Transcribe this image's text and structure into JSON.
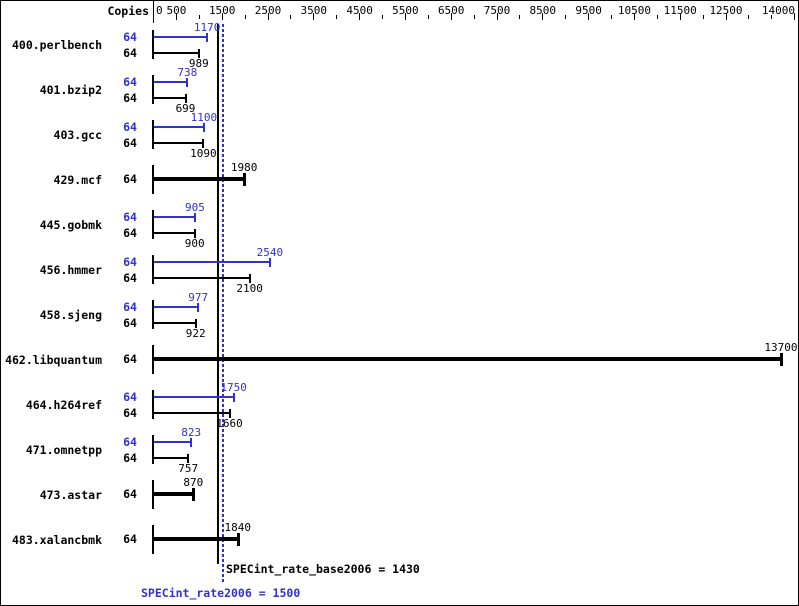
{
  "chart_data": {
    "type": "bar",
    "orientation": "horizontal",
    "title": "",
    "xlabel": "",
    "ylabel": "",
    "copies_column_label": "Copies",
    "grid": false,
    "legend_position": "none",
    "x_axis": {
      "min": 0,
      "max": 14000,
      "tick_step": 500,
      "labeled_ticks": [
        0,
        500,
        1500,
        2500,
        3500,
        4500,
        5500,
        6500,
        7500,
        8500,
        9500,
        10500,
        11500,
        12500,
        14000
      ]
    },
    "series_colors": {
      "peak": "#3232c8",
      "base": "#000000",
      "basepeak": "#000000"
    },
    "benchmarks": [
      {
        "name": "400.perlbench",
        "bars": [
          {
            "kind": "peak",
            "copies": "64",
            "value": 1170
          },
          {
            "kind": "base",
            "copies": "64",
            "value": 989
          }
        ]
      },
      {
        "name": "401.bzip2",
        "bars": [
          {
            "kind": "peak",
            "copies": "64",
            "value": 738
          },
          {
            "kind": "base",
            "copies": "64",
            "value": 699
          }
        ]
      },
      {
        "name": "403.gcc",
        "bars": [
          {
            "kind": "peak",
            "copies": "64",
            "value": 1100
          },
          {
            "kind": "base",
            "copies": "64",
            "value": 1090
          }
        ]
      },
      {
        "name": "429.mcf",
        "bars": [
          {
            "kind": "basepeak",
            "copies": "64",
            "value": 1980
          }
        ]
      },
      {
        "name": "445.gobmk",
        "bars": [
          {
            "kind": "peak",
            "copies": "64",
            "value": 905
          },
          {
            "kind": "base",
            "copies": "64",
            "value": 900
          }
        ]
      },
      {
        "name": "456.hmmer",
        "bars": [
          {
            "kind": "peak",
            "copies": "64",
            "value": 2540
          },
          {
            "kind": "base",
            "copies": "64",
            "value": 2100
          }
        ]
      },
      {
        "name": "458.sjeng",
        "bars": [
          {
            "kind": "peak",
            "copies": "64",
            "value": 977
          },
          {
            "kind": "base",
            "copies": "64",
            "value": 922
          }
        ]
      },
      {
        "name": "462.libquantum",
        "bars": [
          {
            "kind": "basepeak",
            "copies": "64",
            "value": 13700
          }
        ]
      },
      {
        "name": "464.h264ref",
        "bars": [
          {
            "kind": "peak",
            "copies": "64",
            "value": 1750
          },
          {
            "kind": "base",
            "copies": "64",
            "value": 1660
          }
        ]
      },
      {
        "name": "471.omnetpp",
        "bars": [
          {
            "kind": "peak",
            "copies": "64",
            "value": 823
          },
          {
            "kind": "base",
            "copies": "64",
            "value": 757
          }
        ]
      },
      {
        "name": "473.astar",
        "bars": [
          {
            "kind": "basepeak",
            "copies": "64",
            "value": 870
          }
        ]
      },
      {
        "name": "483.xalancbmk",
        "bars": [
          {
            "kind": "basepeak",
            "copies": "64",
            "value": 1840
          }
        ]
      }
    ],
    "reference_lines": [
      {
        "id": "base",
        "label": "SPECint_rate_base2006 = 1430",
        "value": 1430,
        "color": "#000000",
        "style": "solid"
      },
      {
        "id": "peak",
        "label": "SPECint_rate2006 = 1500",
        "value": 1500,
        "color": "#3232c8",
        "style": "dotted"
      }
    ]
  }
}
